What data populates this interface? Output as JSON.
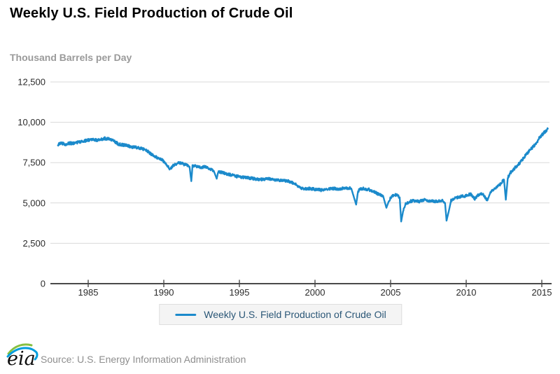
{
  "title": "Weekly U.S. Field Production of Crude Oil",
  "units_label": "Thousand Barrels per Day",
  "legend": {
    "entry": "Weekly U.S. Field Production of Crude Oil"
  },
  "footer": {
    "logo_text": "eia",
    "source": "Source: U.S. Energy Information Administration"
  },
  "colors": {
    "line": "#1b8acb",
    "grid": "#d9d9d9",
    "axis": "#4a4a4a",
    "tick_label": "#2b2b2b",
    "legend_text": "#2a5676",
    "legend_bg": "#f4f4f4",
    "subtitle": "#9a9a9a",
    "source_text": "#8e8e8e",
    "logo_green": "#86bf40",
    "logo_blue": "#009ddc"
  },
  "chart_data": {
    "type": "line",
    "title": "Weekly U.S. Field Production of Crude Oil",
    "xlabel": "",
    "ylabel": "Thousand Barrels per Day",
    "x_range": [
      1982.5,
      2015.6
    ],
    "ylim": [
      0,
      12500
    ],
    "grid": "horizontal",
    "legend_position": "bottom",
    "yticks": [
      {
        "value": 12500,
        "label": "12,500"
      },
      {
        "value": 10000,
        "label": "10,000"
      },
      {
        "value": 7500,
        "label": "7,500"
      },
      {
        "value": 5000,
        "label": "5,000"
      },
      {
        "value": 2500,
        "label": "2,500"
      },
      {
        "value": 0,
        "label": "0"
      }
    ],
    "xticks": [
      {
        "value": 1985,
        "label": "1985"
      },
      {
        "value": 1990,
        "label": "1990"
      },
      {
        "value": 1995,
        "label": "1995"
      },
      {
        "value": 2000,
        "label": "2000"
      },
      {
        "value": 2005,
        "label": "2005"
      },
      {
        "value": 2010,
        "label": "2010"
      },
      {
        "value": 2015,
        "label": "2015"
      }
    ],
    "series": [
      {
        "name": "Weekly U.S. Field Production of Crude Oil",
        "color": "#1b8acb",
        "units": "thousand barrels per day",
        "points": [
          [
            1983.0,
            8630
          ],
          [
            1983.2,
            8680
          ],
          [
            1983.5,
            8650
          ],
          [
            1983.8,
            8700
          ],
          [
            1984.0,
            8700
          ],
          [
            1984.3,
            8750
          ],
          [
            1984.6,
            8800
          ],
          [
            1985.0,
            8900
          ],
          [
            1985.3,
            8950
          ],
          [
            1985.6,
            8900
          ],
          [
            1985.9,
            8950
          ],
          [
            1986.1,
            9000
          ],
          [
            1986.4,
            8950
          ],
          [
            1986.7,
            8850
          ],
          [
            1987.0,
            8650
          ],
          [
            1987.3,
            8600
          ],
          [
            1987.6,
            8550
          ],
          [
            1988.0,
            8450
          ],
          [
            1988.4,
            8400
          ],
          [
            1988.8,
            8300
          ],
          [
            1989.0,
            8150
          ],
          [
            1989.3,
            7950
          ],
          [
            1989.6,
            7800
          ],
          [
            1989.9,
            7650
          ],
          [
            1990.1,
            7500
          ],
          [
            1990.4,
            7100
          ],
          [
            1990.6,
            7300
          ],
          [
            1990.8,
            7400
          ],
          [
            1991.0,
            7500
          ],
          [
            1991.2,
            7450
          ],
          [
            1991.5,
            7350
          ],
          [
            1991.7,
            7250
          ],
          [
            1991.82,
            6350
          ],
          [
            1991.9,
            7300
          ],
          [
            1992.1,
            7300
          ],
          [
            1992.4,
            7200
          ],
          [
            1992.7,
            7250
          ],
          [
            1993.0,
            7100
          ],
          [
            1993.3,
            7000
          ],
          [
            1993.5,
            6500
          ],
          [
            1993.6,
            6950
          ],
          [
            1994.0,
            6850
          ],
          [
            1994.4,
            6750
          ],
          [
            1994.8,
            6650
          ],
          [
            1995.2,
            6600
          ],
          [
            1995.6,
            6550
          ],
          [
            1996.0,
            6500
          ],
          [
            1996.4,
            6450
          ],
          [
            1996.8,
            6500
          ],
          [
            1997.2,
            6450
          ],
          [
            1997.6,
            6400
          ],
          [
            1998.0,
            6400
          ],
          [
            1998.4,
            6300
          ],
          [
            1998.7,
            6200
          ],
          [
            1999.0,
            5950
          ],
          [
            1999.3,
            5850
          ],
          [
            1999.6,
            5900
          ],
          [
            2000.0,
            5850
          ],
          [
            2000.4,
            5800
          ],
          [
            2000.8,
            5850
          ],
          [
            2001.2,
            5900
          ],
          [
            2001.6,
            5850
          ],
          [
            2002.0,
            5950
          ],
          [
            2002.4,
            5900
          ],
          [
            2002.72,
            4900
          ],
          [
            2002.85,
            5750
          ],
          [
            2003.1,
            5900
          ],
          [
            2003.5,
            5850
          ],
          [
            2003.9,
            5700
          ],
          [
            2004.2,
            5550
          ],
          [
            2004.5,
            5450
          ],
          [
            2004.72,
            4700
          ],
          [
            2004.9,
            5150
          ],
          [
            2005.1,
            5450
          ],
          [
            2005.4,
            5500
          ],
          [
            2005.6,
            5350
          ],
          [
            2005.7,
            3850
          ],
          [
            2005.85,
            4600
          ],
          [
            2006.0,
            4950
          ],
          [
            2006.3,
            5100
          ],
          [
            2006.6,
            5150
          ],
          [
            2006.9,
            5100
          ],
          [
            2007.2,
            5200
          ],
          [
            2007.5,
            5150
          ],
          [
            2007.8,
            5100
          ],
          [
            2008.1,
            5100
          ],
          [
            2008.4,
            5150
          ],
          [
            2008.6,
            5000
          ],
          [
            2008.7,
            3900
          ],
          [
            2008.85,
            4500
          ],
          [
            2009.0,
            5150
          ],
          [
            2009.3,
            5300
          ],
          [
            2009.6,
            5400
          ],
          [
            2010.0,
            5450
          ],
          [
            2010.3,
            5550
          ],
          [
            2010.55,
            5250
          ],
          [
            2010.8,
            5500
          ],
          [
            2011.1,
            5550
          ],
          [
            2011.4,
            5150
          ],
          [
            2011.6,
            5650
          ],
          [
            2011.9,
            5900
          ],
          [
            2012.1,
            6050
          ],
          [
            2012.3,
            6200
          ],
          [
            2012.5,
            6450
          ],
          [
            2012.62,
            5200
          ],
          [
            2012.75,
            6550
          ],
          [
            2012.9,
            6850
          ],
          [
            2013.1,
            7050
          ],
          [
            2013.4,
            7350
          ],
          [
            2013.7,
            7650
          ],
          [
            2014.0,
            8050
          ],
          [
            2014.3,
            8350
          ],
          [
            2014.6,
            8650
          ],
          [
            2014.85,
            9050
          ],
          [
            2015.0,
            9200
          ],
          [
            2015.15,
            9350
          ],
          [
            2015.3,
            9500
          ],
          [
            2015.4,
            9600
          ]
        ]
      }
    ]
  }
}
